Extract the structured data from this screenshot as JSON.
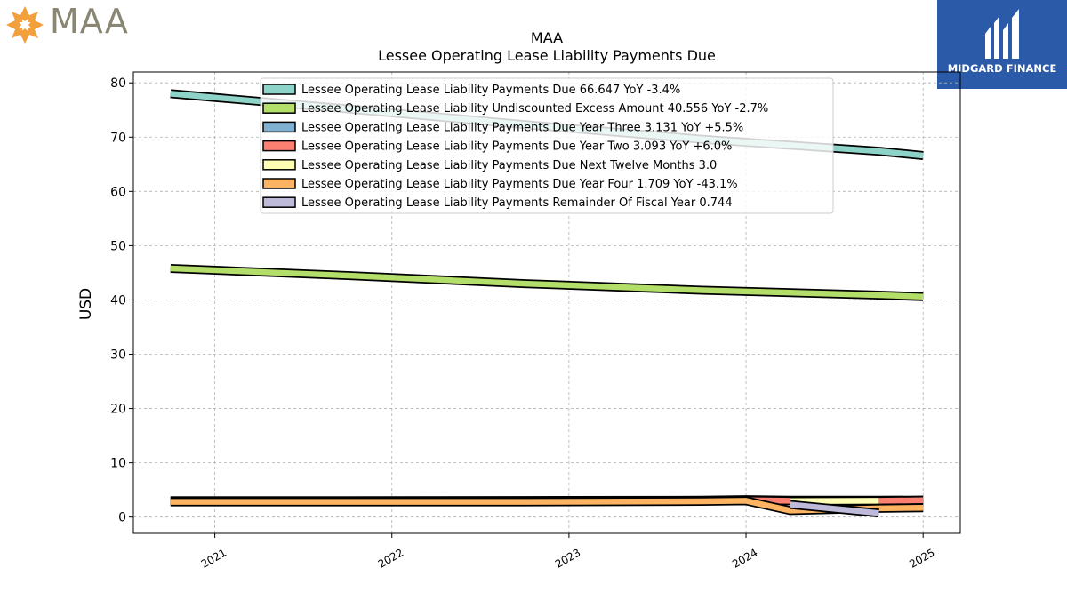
{
  "brand": {
    "name": "MAA",
    "icon": "sun-flower-icon",
    "color": "#f2a03d"
  },
  "partner": {
    "name": "MIDGARD FINANCE",
    "icon": "midgard-logo-icon",
    "color": "#2b5aa8"
  },
  "chart_data": {
    "type": "line",
    "title": "MAA",
    "subtitle": "Lessee Operating Lease Liability Payments Due",
    "xlabel": "",
    "ylabel": "USD",
    "ylim": [
      -3,
      82
    ],
    "xlim": [
      2020.54,
      2025.21
    ],
    "yticks": [
      0,
      10,
      20,
      30,
      40,
      50,
      60,
      70,
      80
    ],
    "xticks": [
      "2021",
      "2022",
      "2023",
      "2024",
      "2025"
    ],
    "xtick_values": [
      2021,
      2022,
      2023,
      2024,
      2025
    ],
    "grid": true,
    "legend_position": "top-center",
    "series": [
      {
        "name": "Lessee Operating Lease Liability Payments Due",
        "legend": "Lessee Operating Lease Liability Payments Due  66.647 YoY -3.4%",
        "color": "#8dd3c7",
        "x": [
          2020.75,
          2021.75,
          2022.75,
          2023.75,
          2024.75,
          2025.0
        ],
        "y": [
          78.0,
          75.2,
          72.3,
          69.6,
          67.4,
          66.6
        ]
      },
      {
        "name": "Lessee Operating Lease Liability Undiscounted Excess Amount",
        "legend": "Lessee Operating Lease Liability Undiscounted Excess Amount  40.556 YoY -2.7%",
        "color": "#b3de69",
        "x": [
          2020.75,
          2021.75,
          2022.75,
          2023.75,
          2024.75,
          2025.0
        ],
        "y": [
          45.8,
          44.5,
          43.0,
          41.8,
          40.9,
          40.6
        ]
      },
      {
        "name": "Lessee Operating Lease Liability Payments Due Year Three",
        "legend": "Lessee Operating Lease Liability Payments Due Year Three  3.131 YoY +5.5%",
        "color": "#80b1d3",
        "x": [
          2020.75,
          2021.75,
          2022.75,
          2023.75,
          2024.0,
          2024.25,
          2024.75,
          2025.0
        ],
        "y": [
          3.0,
          3.0,
          3.05,
          3.1,
          3.2,
          3.1,
          3.1,
          3.13
        ]
      },
      {
        "name": "Lessee Operating Lease Liability Payments Due Year Two",
        "legend": "Lessee Operating Lease Liability Payments Due Year Two  3.093 YoY +6.0%",
        "color": "#fb8072",
        "x": [
          2020.75,
          2021.75,
          2022.75,
          2023.75,
          2024.0,
          2024.25,
          2024.75,
          2025.0
        ],
        "y": [
          3.0,
          3.0,
          3.0,
          3.05,
          3.1,
          3.0,
          3.0,
          3.09
        ]
      },
      {
        "name": "Lessee Operating Lease Liability Payments Due Next Twelve Months",
        "legend": "Lessee Operating Lease Liability Payments Due Next Twelve Months  3.0",
        "color": "#ffffb3",
        "x": [
          2024.25,
          2024.75
        ],
        "y": [
          2.95,
          3.0
        ]
      },
      {
        "name": "Lessee Operating Lease Liability Payments Due Year Four",
        "legend": "Lessee Operating Lease Liability Payments Due Year Four  1.709 YoY -43.1%",
        "color": "#fdb462",
        "x": [
          2020.75,
          2021.75,
          2022.75,
          2023.75,
          2024.0,
          2024.25,
          2024.75,
          2025.0
        ],
        "y": [
          2.8,
          2.8,
          2.8,
          2.9,
          3.0,
          1.2,
          1.6,
          1.71
        ]
      },
      {
        "name": "Lessee Operating Lease Liability Payments Remainder Of Fiscal Year",
        "legend": "Lessee Operating Lease Liability Payments Remainder Of Fiscal Year  0.744",
        "color": "#bebada",
        "x": [
          2024.25,
          2024.75
        ],
        "y": [
          2.3,
          0.74
        ]
      }
    ]
  }
}
